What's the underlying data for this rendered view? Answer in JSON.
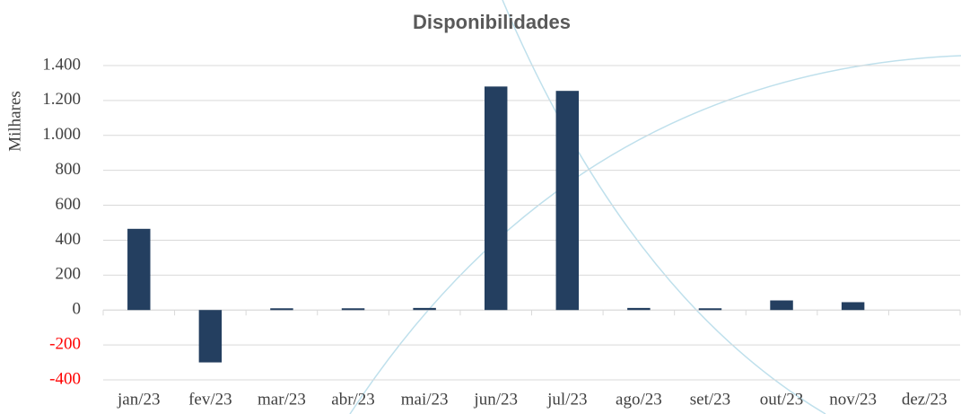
{
  "chart_data": {
    "type": "bar",
    "title": "Disponibilidades",
    "y_label": "Milhares",
    "categories": [
      "jan/23",
      "fev/23",
      "mar/23",
      "abr/23",
      "mai/23",
      "jun/23",
      "jul/23",
      "ago/23",
      "set/23",
      "out/23",
      "nov/23",
      "dez/23"
    ],
    "values": [
      465,
      -300,
      10,
      10,
      12,
      1280,
      1255,
      12,
      10,
      55,
      45,
      0
    ],
    "color": "#243f60",
    "ylim": [
      -400,
      1400
    ],
    "yticks": [
      -400,
      -200,
      0,
      200,
      400,
      600,
      800,
      {
        "value": 1000,
        "label": "1.000"
      },
      {
        "value": 1200,
        "label": "1.200"
      },
      {
        "value": 1400,
        "label": "1.400"
      }
    ],
    "negative_tick_color": "#ff0000",
    "grid": true
  }
}
